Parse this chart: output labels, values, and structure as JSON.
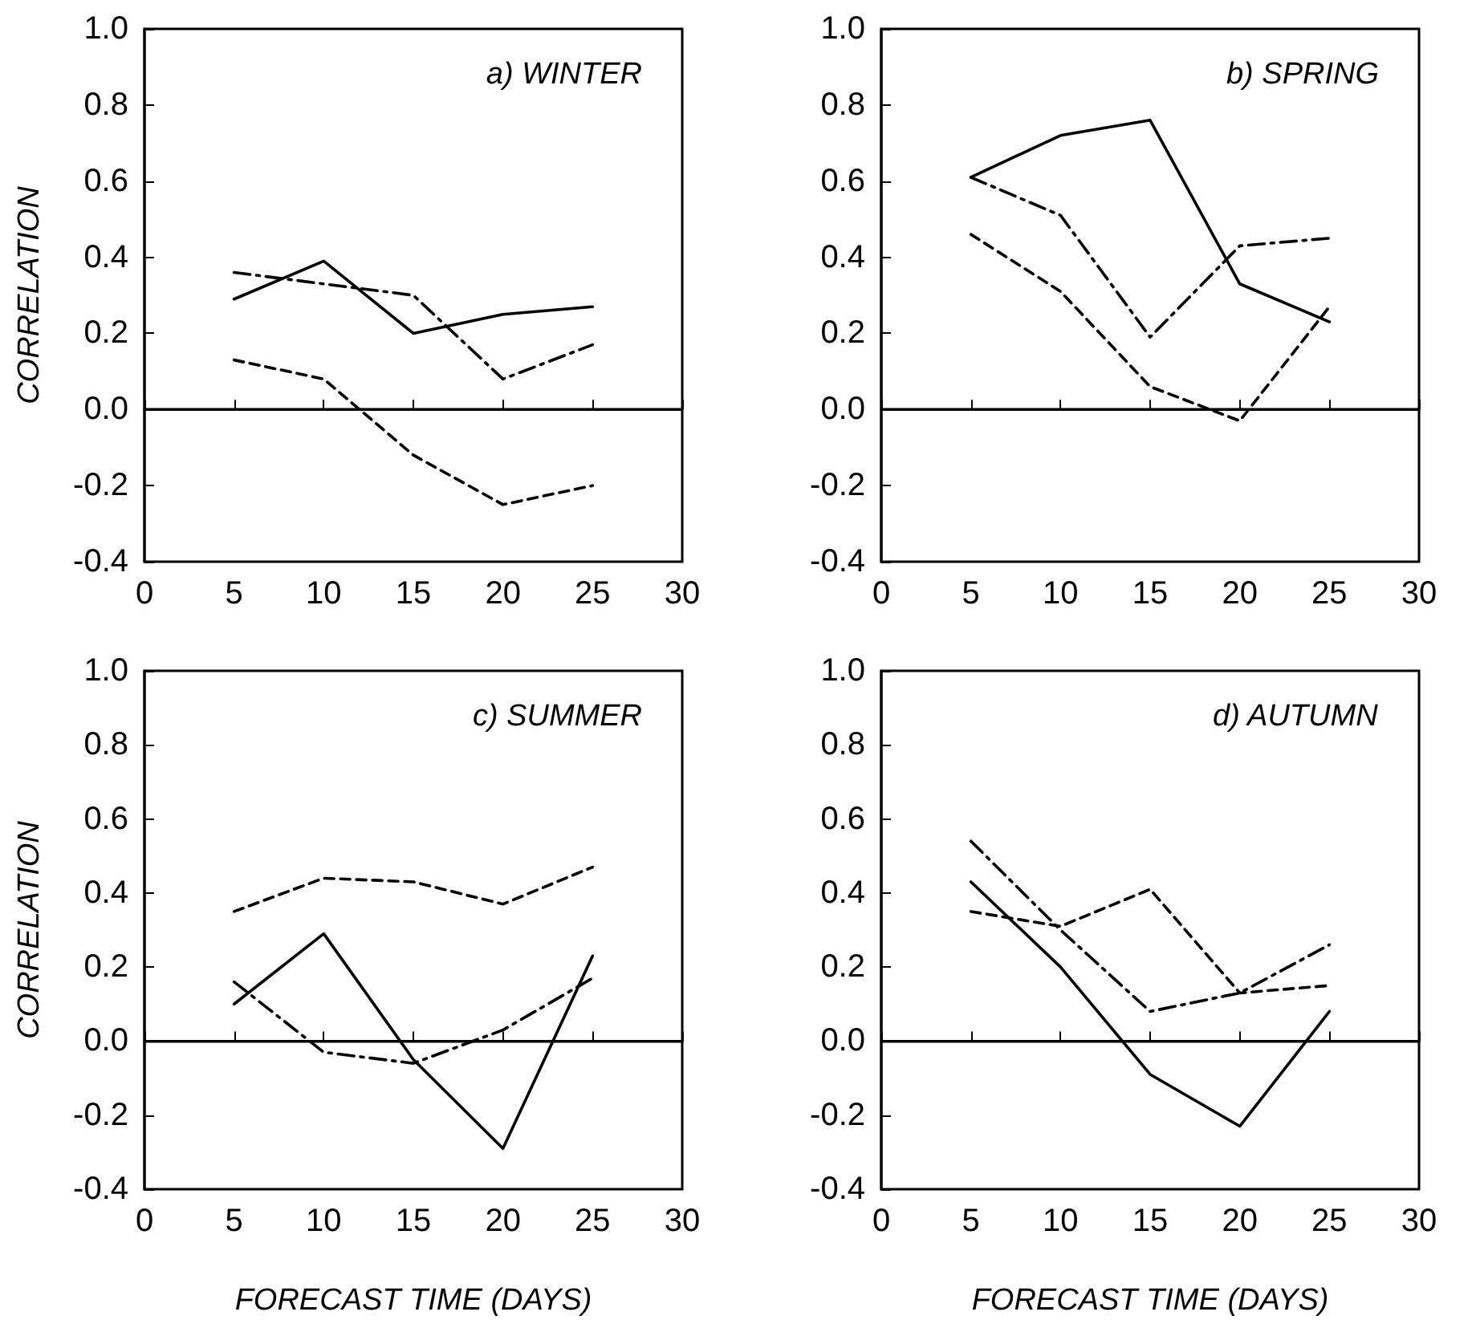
{
  "chart_data": [
    {
      "type": "line",
      "title": "a) WINTER",
      "ylabel": "CORRELATION",
      "x": [
        5,
        10,
        15,
        20,
        25
      ],
      "xlim": [
        0,
        30
      ],
      "xticks": [
        0,
        5,
        10,
        15,
        20,
        25,
        30
      ],
      "ylim": [
        -0.4,
        1.0
      ],
      "yticks": [
        {
          "value": -0.4,
          "label": "-0.4"
        },
        {
          "value": -0.2,
          "label": "-0.2"
        },
        {
          "value": 0,
          "label": "0.0"
        },
        0.2,
        0.4,
        0.6,
        0.8,
        {
          "value": 1.0,
          "label": "1.0"
        }
      ],
      "grid": false,
      "marker": "none",
      "ref_lines": [
        {
          "axis": "y",
          "value": 0,
          "color": "#000000"
        }
      ],
      "series": [
        {
          "color": "#000000",
          "line_style": "solid",
          "values": [
            0.29,
            0.39,
            0.2,
            0.25,
            0.27
          ]
        },
        {
          "color": "#000000",
          "line_style": "dashdot",
          "values": [
            0.36,
            0.33,
            0.3,
            0.08,
            0.17
          ]
        },
        {
          "color": "#000000",
          "line_style": "dashed",
          "values": [
            0.13,
            0.08,
            -0.12,
            -0.25,
            -0.2
          ]
        }
      ]
    },
    {
      "type": "line",
      "title": "b) SPRING",
      "x": [
        5,
        10,
        15,
        20,
        25
      ],
      "xlim": [
        0,
        30
      ],
      "xticks": [
        0,
        5,
        10,
        15,
        20,
        25,
        30
      ],
      "ylim": [
        -0.4,
        1.0
      ],
      "yticks": [
        {
          "value": -0.4,
          "label": "-0.4"
        },
        {
          "value": -0.2,
          "label": "-0.2"
        },
        {
          "value": 0,
          "label": "0.0"
        },
        0.2,
        0.4,
        0.6,
        0.8,
        {
          "value": 1.0,
          "label": "1.0"
        }
      ],
      "grid": false,
      "marker": "none",
      "ref_lines": [
        {
          "axis": "y",
          "value": 0,
          "color": "#000000"
        }
      ],
      "series": [
        {
          "color": "#000000",
          "line_style": "solid",
          "values": [
            0.61,
            0.72,
            0.76,
            0.33,
            0.23
          ]
        },
        {
          "color": "#000000",
          "line_style": "dashdot",
          "values": [
            0.61,
            0.51,
            0.19,
            0.43,
            0.45
          ]
        },
        {
          "color": "#000000",
          "line_style": "dashed",
          "values": [
            0.46,
            0.31,
            0.06,
            -0.03,
            0.27
          ]
        }
      ]
    },
    {
      "type": "line",
      "title": "c) SUMMER",
      "ylabel": "CORRELATION",
      "xlabel": "FORECAST TIME (DAYS)",
      "x": [
        5,
        10,
        15,
        20,
        25
      ],
      "xlim": [
        0,
        30
      ],
      "xticks": [
        0,
        5,
        10,
        15,
        20,
        25,
        30
      ],
      "ylim": [
        -0.4,
        1.0
      ],
      "yticks": [
        {
          "value": -0.4,
          "label": "-0.4"
        },
        {
          "value": -0.2,
          "label": "-0.2"
        },
        {
          "value": 0,
          "label": "0.0"
        },
        0.2,
        0.4,
        0.6,
        0.8,
        {
          "value": 1.0,
          "label": "1.0"
        }
      ],
      "grid": false,
      "marker": "none",
      "ref_lines": [
        {
          "axis": "y",
          "value": 0,
          "color": "#000000"
        }
      ],
      "series": [
        {
          "color": "#000000",
          "line_style": "solid",
          "values": [
            0.1,
            0.29,
            -0.05,
            -0.29,
            0.23
          ]
        },
        {
          "color": "#000000",
          "line_style": "dashdot",
          "values": [
            0.16,
            -0.03,
            -0.06,
            0.03,
            0.17
          ]
        },
        {
          "color": "#000000",
          "line_style": "dashed",
          "values": [
            0.35,
            0.44,
            0.43,
            0.37,
            0.47
          ]
        }
      ]
    },
    {
      "type": "line",
      "title": "d) AUTUMN",
      "xlabel": "FORECAST TIME (DAYS)",
      "x": [
        5,
        10,
        15,
        20,
        25
      ],
      "xlim": [
        0,
        30
      ],
      "xticks": [
        0,
        5,
        10,
        15,
        20,
        25,
        30
      ],
      "ylim": [
        -0.4,
        1.0
      ],
      "yticks": [
        {
          "value": -0.4,
          "label": "-0.4"
        },
        {
          "value": -0.2,
          "label": "-0.2"
        },
        {
          "value": 0,
          "label": "0.0"
        },
        0.2,
        0.4,
        0.6,
        0.8,
        {
          "value": 1.0,
          "label": "1.0"
        }
      ],
      "grid": false,
      "marker": "none",
      "ref_lines": [
        {
          "axis": "y",
          "value": 0,
          "color": "#000000"
        }
      ],
      "series": [
        {
          "color": "#000000",
          "line_style": "solid",
          "values": [
            0.43,
            0.2,
            -0.09,
            -0.23,
            0.08
          ]
        },
        {
          "color": "#000000",
          "line_style": "dashdot",
          "values": [
            0.54,
            0.3,
            0.08,
            0.13,
            0.26
          ]
        },
        {
          "color": "#000000",
          "line_style": "dashed",
          "values": [
            0.35,
            0.31,
            0.41,
            0.13,
            0.15
          ]
        }
      ]
    }
  ]
}
